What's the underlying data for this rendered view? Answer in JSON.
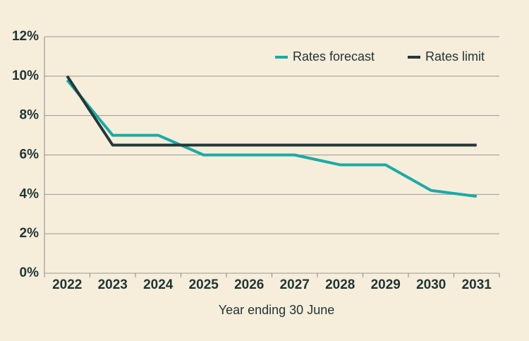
{
  "chart_data": {
    "type": "line",
    "x_label": "Year ending 30 June",
    "categories": [
      "2022",
      "2023",
      "2024",
      "2025",
      "2026",
      "2027",
      "2028",
      "2029",
      "2030",
      "2031"
    ],
    "series": [
      {
        "name": "Rates forecast",
        "color": "#1aaba7",
        "values": [
          9.8,
          7.0,
          7.0,
          6.0,
          6.0,
          6.0,
          5.5,
          5.5,
          4.2,
          3.9
        ]
      },
      {
        "name": "Rates limit",
        "color": "#243838",
        "values": [
          10.0,
          6.5,
          6.5,
          6.5,
          6.5,
          6.5,
          6.5,
          6.5,
          6.5,
          6.5
        ]
      }
    ],
    "ylim": [
      0,
      12
    ],
    "yticks": [
      {
        "value": 0,
        "label": "0%"
      },
      {
        "value": 2,
        "label": "2%"
      },
      {
        "value": 4,
        "label": "4%"
      },
      {
        "value": 6,
        "label": "6%"
      },
      {
        "value": 8,
        "label": "8%"
      },
      {
        "value": 10,
        "label": "10%"
      },
      {
        "value": 12,
        "label": "12%"
      }
    ],
    "grid": true,
    "legend": "top-right"
  }
}
